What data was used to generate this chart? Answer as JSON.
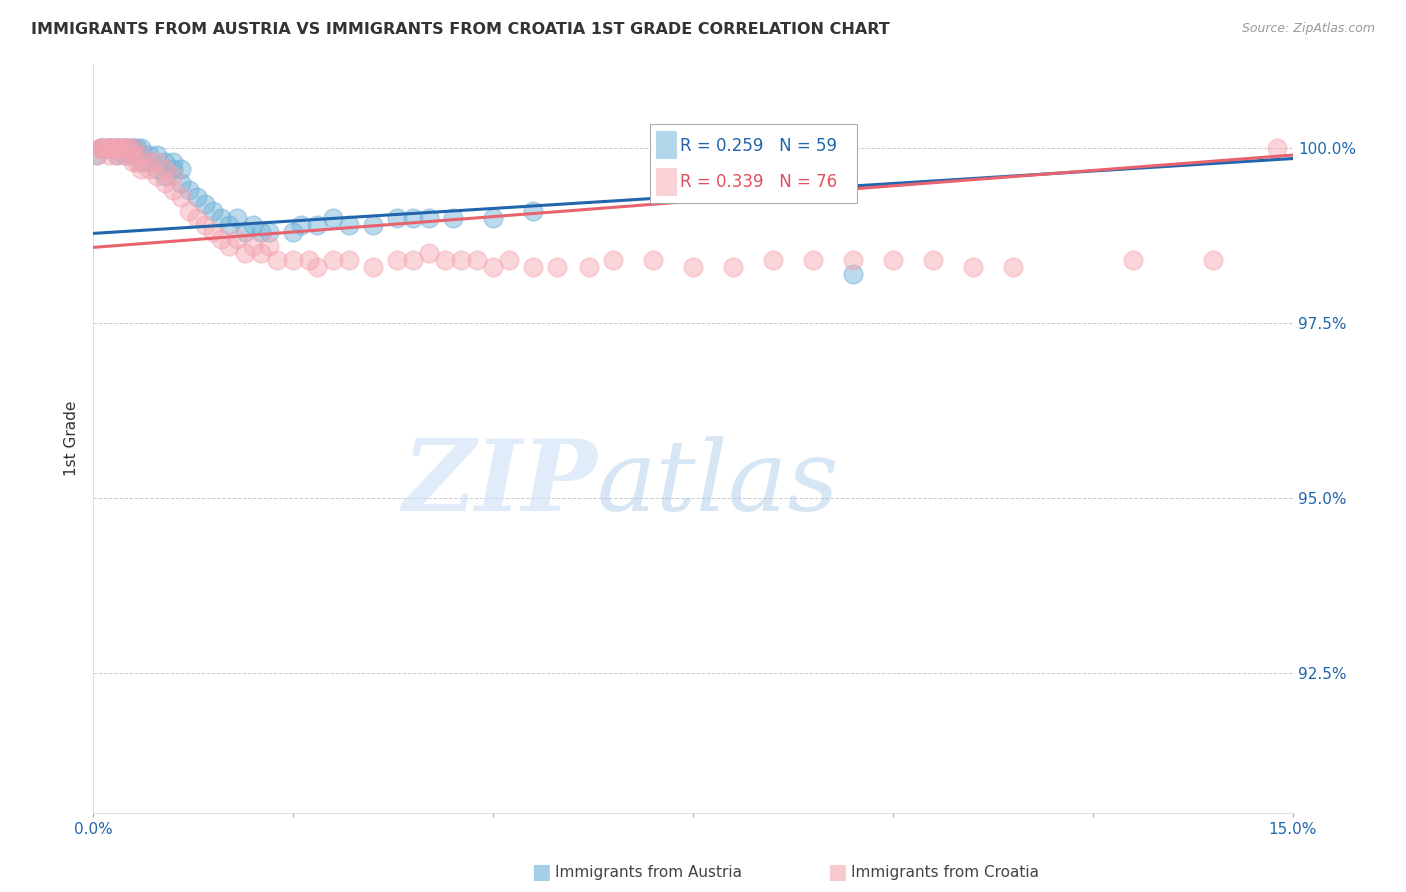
{
  "title": "IMMIGRANTS FROM AUSTRIA VS IMMIGRANTS FROM CROATIA 1ST GRADE CORRELATION CHART",
  "source_text": "Source: ZipAtlas.com",
  "ylabel": "1st Grade",
  "ytick_labels": [
    "92.5%",
    "95.0%",
    "97.5%",
    "100.0%"
  ],
  "ytick_values": [
    0.925,
    0.95,
    0.975,
    1.0
  ],
  "xlim": [
    0.0,
    0.15
  ],
  "ylim": [
    0.905,
    1.012
  ],
  "legend_austria_r": "R = 0.259",
  "legend_austria_n": "N = 59",
  "legend_croatia_r": "R = 0.339",
  "legend_croatia_n": "N = 76",
  "austria_color": "#6baed6",
  "croatia_color": "#f4a4b0",
  "austria_line_color": "#2166ac",
  "croatia_line_color": "#e8636e",
  "background_color": "#ffffff",
  "austria_x": [
    0.0005,
    0.001,
    0.001,
    0.0015,
    0.002,
    0.002,
    0.002,
    0.0025,
    0.003,
    0.003,
    0.003,
    0.003,
    0.0035,
    0.004,
    0.004,
    0.004,
    0.004,
    0.0045,
    0.005,
    0.005,
    0.005,
    0.0055,
    0.006,
    0.006,
    0.006,
    0.007,
    0.007,
    0.008,
    0.008,
    0.009,
    0.009,
    0.01,
    0.01,
    0.011,
    0.011,
    0.012,
    0.013,
    0.014,
    0.015,
    0.016,
    0.017,
    0.018,
    0.019,
    0.02,
    0.021,
    0.022,
    0.025,
    0.026,
    0.028,
    0.03,
    0.032,
    0.035,
    0.038,
    0.04,
    0.042,
    0.045,
    0.05,
    0.055,
    0.095
  ],
  "austria_y": [
    0.999,
    1.0,
    1.0,
    1.0,
    1.0,
    1.0,
    1.0,
    1.0,
    1.0,
    1.0,
    1.0,
    0.999,
    1.0,
    1.0,
    1.0,
    1.0,
    0.999,
    1.0,
    1.0,
    1.0,
    0.999,
    1.0,
    1.0,
    0.999,
    0.998,
    0.999,
    0.998,
    0.999,
    0.997,
    0.998,
    0.996,
    0.997,
    0.998,
    0.995,
    0.997,
    0.994,
    0.993,
    0.992,
    0.991,
    0.99,
    0.989,
    0.99,
    0.988,
    0.989,
    0.988,
    0.988,
    0.988,
    0.989,
    0.989,
    0.99,
    0.989,
    0.989,
    0.99,
    0.99,
    0.99,
    0.99,
    0.99,
    0.991,
    0.982
  ],
  "croatia_x": [
    0.0005,
    0.001,
    0.001,
    0.001,
    0.0015,
    0.002,
    0.002,
    0.002,
    0.0025,
    0.003,
    0.003,
    0.003,
    0.003,
    0.0035,
    0.004,
    0.004,
    0.004,
    0.0045,
    0.005,
    0.005,
    0.005,
    0.0055,
    0.006,
    0.006,
    0.007,
    0.007,
    0.008,
    0.008,
    0.009,
    0.009,
    0.01,
    0.01,
    0.011,
    0.012,
    0.013,
    0.014,
    0.015,
    0.016,
    0.017,
    0.018,
    0.019,
    0.02,
    0.021,
    0.022,
    0.023,
    0.025,
    0.027,
    0.028,
    0.03,
    0.032,
    0.035,
    0.038,
    0.04,
    0.042,
    0.044,
    0.046,
    0.048,
    0.05,
    0.052,
    0.055,
    0.058,
    0.062,
    0.065,
    0.07,
    0.075,
    0.08,
    0.085,
    0.09,
    0.095,
    0.1,
    0.105,
    0.11,
    0.115,
    0.13,
    0.14,
    0.148
  ],
  "croatia_y": [
    0.999,
    1.0,
    1.0,
    1.0,
    1.0,
    1.0,
    1.0,
    0.999,
    1.0,
    1.0,
    1.0,
    0.999,
    1.0,
    1.0,
    1.0,
    1.0,
    0.999,
    1.0,
    0.999,
    0.998,
    1.0,
    0.998,
    0.999,
    0.997,
    0.997,
    0.998,
    0.996,
    0.998,
    0.995,
    0.997,
    0.994,
    0.996,
    0.993,
    0.991,
    0.99,
    0.989,
    0.988,
    0.987,
    0.986,
    0.987,
    0.985,
    0.986,
    0.985,
    0.986,
    0.984,
    0.984,
    0.984,
    0.983,
    0.984,
    0.984,
    0.983,
    0.984,
    0.984,
    0.985,
    0.984,
    0.984,
    0.984,
    0.983,
    0.984,
    0.983,
    0.983,
    0.983,
    0.984,
    0.984,
    0.983,
    0.983,
    0.984,
    0.984,
    0.984,
    0.984,
    0.984,
    0.983,
    0.983,
    0.984,
    0.984,
    1.0
  ]
}
